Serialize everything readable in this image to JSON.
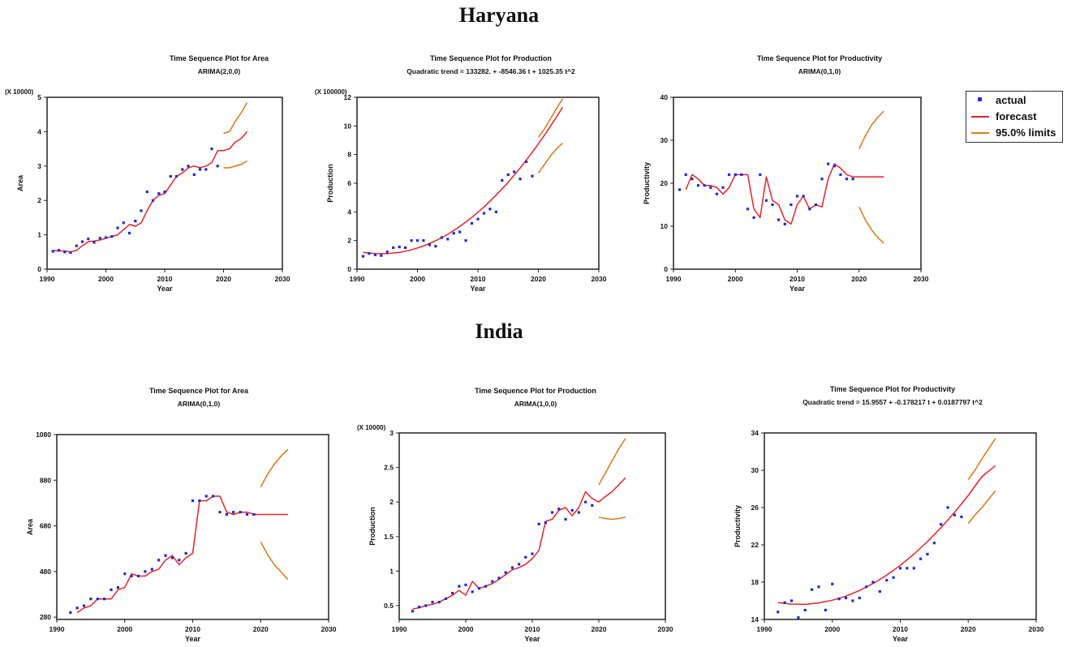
{
  "sections": {
    "haryana": "Haryana",
    "india": "India"
  },
  "legend": {
    "actual": "actual",
    "forecast": "forecast",
    "limits": "95.0% limits"
  },
  "colors": {
    "actual": "#1f2bd6",
    "forecast": "#e8222b",
    "limits": "#e07b20",
    "axis": "#222222"
  },
  "chart_data": [
    {
      "type": "line",
      "title": "Time Sequence Plot for Area",
      "subtitle": "ARIMA(2,0,0)",
      "xlabel": "Year",
      "ylabel": "Area",
      "multiplier": "(X 10000)",
      "xlim": [
        1990,
        2030
      ],
      "ylim": [
        0,
        5
      ],
      "xticks": [
        1990,
        2000,
        2010,
        2020,
        2030
      ],
      "yticks": [
        0,
        1,
        2,
        3,
        4,
        5
      ],
      "actual": {
        "x": [
          1991,
          1992,
          1993,
          1994,
          1995,
          1996,
          1997,
          1998,
          1999,
          2000,
          2001,
          2002,
          2003,
          2004,
          2005,
          2006,
          2007,
          2008,
          2009,
          2010,
          2011,
          2012,
          2013,
          2014,
          2015,
          2016,
          2017,
          2018,
          2019
        ],
        "y": [
          0.52,
          0.55,
          0.5,
          0.48,
          0.68,
          0.8,
          0.88,
          0.78,
          0.9,
          0.92,
          0.95,
          1.2,
          1.35,
          1.05,
          1.4,
          1.7,
          2.25,
          2.0,
          2.2,
          2.25,
          2.7,
          2.7,
          2.9,
          3.0,
          2.75,
          2.9,
          2.9,
          3.5,
          3.0
        ]
      },
      "fitted": {
        "x": [
          1991,
          1992,
          1993,
          1994,
          1995,
          1996,
          1997,
          1998,
          1999,
          2000,
          2001,
          2002,
          2003,
          2004,
          2005,
          2006,
          2007,
          2008,
          2009,
          2010,
          2011,
          2012,
          2013,
          2014,
          2015,
          2016,
          2017,
          2018,
          2019,
          2020,
          2021,
          2022,
          2023,
          2024
        ],
        "y": [
          0.55,
          0.53,
          0.53,
          0.5,
          0.55,
          0.68,
          0.8,
          0.82,
          0.85,
          0.9,
          0.95,
          1.0,
          1.15,
          1.3,
          1.25,
          1.35,
          1.7,
          2.0,
          2.15,
          2.2,
          2.45,
          2.7,
          2.8,
          2.95,
          3.0,
          2.95,
          3.0,
          3.1,
          3.45,
          3.45,
          3.5,
          3.7,
          3.8,
          4.0
        ]
      },
      "upper": {
        "x": [
          2020,
          2021,
          2022,
          2023,
          2024
        ],
        "y": [
          3.95,
          4.0,
          4.3,
          4.55,
          4.85
        ]
      },
      "lower": {
        "x": [
          2020,
          2021,
          2022,
          2023,
          2024
        ],
        "y": [
          2.95,
          2.95,
          3.0,
          3.05,
          3.15
        ]
      }
    },
    {
      "type": "line",
      "title": "Time Sequence Plot for Production",
      "subtitle": "Quadratic trend = 133282. + -8546.36 t  + 1025.35 t^2",
      "xlabel": "Year",
      "ylabel": "Production",
      "multiplier": "(X 100000)",
      "xlim": [
        1990,
        2030
      ],
      "ylim": [
        0,
        12
      ],
      "xticks": [
        1990,
        2000,
        2010,
        2020,
        2030
      ],
      "yticks": [
        0,
        2,
        4,
        6,
        8,
        10,
        12
      ],
      "actual": {
        "x": [
          1991,
          1992,
          1993,
          1994,
          1995,
          1996,
          1997,
          1998,
          1999,
          2000,
          2001,
          2002,
          2003,
          2004,
          2005,
          2006,
          2007,
          2008,
          2009,
          2010,
          2011,
          2012,
          2013,
          2014,
          2015,
          2016,
          2017,
          2018,
          2019
        ],
        "y": [
          0.9,
          1.1,
          1.0,
          0.95,
          1.2,
          1.5,
          1.55,
          1.5,
          2.0,
          2.0,
          2.0,
          1.7,
          1.6,
          2.2,
          2.1,
          2.5,
          2.6,
          2.0,
          3.2,
          3.5,
          3.9,
          4.2,
          4.0,
          6.2,
          6.6,
          6.8,
          6.3,
          7.5,
          6.5
        ]
      },
      "fitted": {
        "x": [
          1991,
          1993,
          1995,
          1997,
          1999,
          2001,
          2003,
          2005,
          2007,
          2009,
          2011,
          2013,
          2015,
          2017,
          2019,
          2021,
          2023,
          2024
        ],
        "y": [
          1.18,
          1.09,
          1.08,
          1.17,
          1.35,
          1.62,
          1.98,
          2.43,
          2.98,
          3.61,
          4.34,
          5.16,
          6.07,
          7.07,
          8.16,
          9.35,
          10.63,
          11.3
        ]
      },
      "upper": {
        "x": [
          2020,
          2021,
          2022,
          2023,
          2024
        ],
        "y": [
          9.2,
          9.8,
          10.5,
          11.2,
          11.9
        ]
      },
      "lower": {
        "x": [
          2020,
          2021,
          2022,
          2023,
          2024
        ],
        "y": [
          6.7,
          7.3,
          7.9,
          8.4,
          8.8
        ]
      }
    },
    {
      "type": "line",
      "title": "Time Sequence Plot for Productivity",
      "subtitle": "ARIMA(0,1,0)",
      "xlabel": "Year",
      "ylabel": "Productivity",
      "multiplier": "",
      "xlim": [
        1990,
        2030
      ],
      "ylim": [
        0,
        40
      ],
      "xticks": [
        1990,
        2000,
        2010,
        2020,
        2030
      ],
      "yticks": [
        0,
        10,
        20,
        30,
        40
      ],
      "actual": {
        "x": [
          1991,
          1992,
          1993,
          1994,
          1995,
          1996,
          1997,
          1998,
          1999,
          2000,
          2001,
          2002,
          2003,
          2004,
          2005,
          2006,
          2007,
          2008,
          2009,
          2010,
          2011,
          2012,
          2013,
          2014,
          2015,
          2016,
          2017,
          2018,
          2019
        ],
        "y": [
          18.5,
          22,
          21,
          19.5,
          19.5,
          19,
          17.5,
          19,
          22,
          22,
          22,
          14,
          12,
          22,
          16,
          15,
          11.5,
          10.5,
          15,
          17,
          17,
          14,
          15,
          21,
          24.5,
          24,
          22,
          21,
          21
        ]
      },
      "fitted": {
        "x": [
          1992,
          1993,
          1994,
          1995,
          1996,
          1997,
          1998,
          1999,
          2000,
          2001,
          2002,
          2003,
          2004,
          2005,
          2006,
          2007,
          2008,
          2009,
          2010,
          2011,
          2012,
          2013,
          2014,
          2015,
          2016,
          2017,
          2018,
          2019,
          2020,
          2024
        ],
        "y": [
          18.5,
          22,
          21,
          19.5,
          19.5,
          19,
          17.5,
          19,
          22,
          22,
          22,
          14,
          12,
          21.5,
          16,
          15,
          11.5,
          10.5,
          15,
          17,
          14,
          15,
          14.5,
          21,
          24.5,
          23.5,
          22,
          21.5,
          21.5,
          21.5
        ]
      },
      "upper": {
        "x": [
          2020,
          2021,
          2022,
          2023,
          2024
        ],
        "y": [
          28,
          31,
          33.5,
          35.3,
          36.8
        ]
      },
      "lower": {
        "x": [
          2020,
          2021,
          2022,
          2023,
          2024
        ],
        "y": [
          14.5,
          11.5,
          9.2,
          7.4,
          6.0
        ]
      }
    },
    {
      "type": "line",
      "title": "Time Sequence Plot for Area",
      "subtitle": "ARIMA(0,1,0)",
      "xlabel": "Year",
      "ylabel": "Area",
      "multiplier": "",
      "xlim": [
        1990,
        2030
      ],
      "ylim": [
        270,
        1080
      ],
      "xticks": [
        1990,
        2000,
        2010,
        2020,
        2030
      ],
      "yticks": [
        280,
        480,
        680,
        880,
        1080
      ],
      "ytick_labels": [
        "280",
        "480",
        "680",
        "880",
        "1080"
      ],
      "actual": {
        "x": [
          1992,
          1993,
          1994,
          1995,
          1996,
          1997,
          1998,
          1999,
          2000,
          2001,
          2002,
          2003,
          2004,
          2005,
          2006,
          2007,
          2008,
          2009,
          2010,
          2011,
          2012,
          2013,
          2014,
          2015,
          2016,
          2017,
          2018,
          2019
        ],
        "y": [
          300,
          320,
          330,
          360,
          360,
          360,
          400,
          410,
          470,
          460,
          460,
          480,
          490,
          530,
          550,
          540,
          530,
          560,
          790,
          790,
          810,
          810,
          740,
          730,
          740,
          740,
          730,
          730
        ]
      },
      "fitted": {
        "x": [
          1993,
          1994,
          1995,
          1996,
          1997,
          1998,
          1999,
          2000,
          2001,
          2002,
          2003,
          2004,
          2005,
          2006,
          2007,
          2008,
          2009,
          2010,
          2011,
          2012,
          2013,
          2014,
          2015,
          2016,
          2017,
          2018,
          2019,
          2020,
          2024
        ],
        "y": [
          300,
          320,
          330,
          360,
          360,
          360,
          400,
          410,
          470,
          460,
          460,
          480,
          490,
          530,
          550,
          510,
          540,
          560,
          790,
          790,
          810,
          810,
          740,
          730,
          740,
          740,
          730,
          730,
          730
        ]
      },
      "upper": {
        "x": [
          2020,
          2021,
          2022,
          2023,
          2024
        ],
        "y": [
          850,
          905,
          950,
          985,
          1015
        ]
      },
      "lower": {
        "x": [
          2020,
          2021,
          2022,
          2023,
          2024
        ],
        "y": [
          610,
          555,
          510,
          478,
          445
        ]
      }
    },
    {
      "type": "line",
      "title": "Time Sequence Plot for Production",
      "subtitle": "ARIMA(1,0,0)",
      "xlabel": "Year",
      "ylabel": "Production",
      "multiplier": "(X 10000)",
      "xlim": [
        1990,
        2030
      ],
      "ylim": [
        0.3,
        3
      ],
      "xticks": [
        1990,
        2000,
        2010,
        2020,
        2030
      ],
      "yticks": [
        0.5,
        1,
        1.5,
        2,
        2.5,
        3
      ],
      "ytick_labels": [
        "0.5",
        "1",
        "1.5",
        "2",
        "2.5",
        "3"
      ],
      "actual": {
        "x": [
          1992,
          1993,
          1994,
          1995,
          1996,
          1997,
          1998,
          1999,
          2000,
          2001,
          2002,
          2003,
          2004,
          2005,
          2006,
          2007,
          2008,
          2009,
          2010,
          2011,
          2012,
          2013,
          2014,
          2015,
          2016,
          2017,
          2018,
          2019
        ],
        "y": [
          0.42,
          0.48,
          0.5,
          0.55,
          0.55,
          0.6,
          0.68,
          0.78,
          0.8,
          0.7,
          0.75,
          0.78,
          0.85,
          0.9,
          0.98,
          1.05,
          1.1,
          1.2,
          1.25,
          1.68,
          1.7,
          1.85,
          1.9,
          1.75,
          1.88,
          1.85,
          2.0,
          1.95
        ]
      },
      "fitted": {
        "x": [
          1992,
          1993,
          1994,
          1995,
          1996,
          1997,
          1998,
          1999,
          2000,
          2001,
          2002,
          2003,
          2004,
          2005,
          2006,
          2007,
          2008,
          2009,
          2010,
          2011,
          2012,
          2013,
          2014,
          2015,
          2016,
          2017,
          2018,
          2019,
          2020,
          2021,
          2022,
          2023,
          2024
        ],
        "y": [
          0.45,
          0.47,
          0.5,
          0.52,
          0.55,
          0.6,
          0.65,
          0.72,
          0.65,
          0.85,
          0.75,
          0.78,
          0.82,
          0.88,
          0.95,
          1.02,
          1.05,
          1.1,
          1.18,
          1.3,
          1.72,
          1.75,
          1.88,
          1.92,
          1.8,
          1.92,
          2.15,
          2.05,
          2.0,
          2.08,
          2.15,
          2.25,
          2.35
        ]
      },
      "upper": {
        "x": [
          2020,
          2021,
          2022,
          2023,
          2024
        ],
        "y": [
          2.25,
          2.42,
          2.6,
          2.77,
          2.92
        ]
      },
      "lower": {
        "x": [
          2020,
          2021,
          2022,
          2023,
          2024
        ],
        "y": [
          1.78,
          1.76,
          1.75,
          1.76,
          1.78
        ]
      }
    },
    {
      "type": "line",
      "title": "Time Sequence Plot for Productivity",
      "subtitle": "Quadratic trend = 15.9557 + -0.178217 t  + 0.0187797 t^2",
      "xlabel": "Year",
      "ylabel": "Productivity",
      "multiplier": "",
      "xlim": [
        1990,
        2030
      ],
      "ylim": [
        14,
        34
      ],
      "xticks": [
        1990,
        2000,
        2010,
        2020,
        2030
      ],
      "yticks": [
        14,
        18,
        22,
        26,
        30,
        34
      ],
      "actual": {
        "x": [
          1992,
          1993,
          1994,
          1995,
          1996,
          1997,
          1998,
          1999,
          2000,
          2001,
          2002,
          2003,
          2004,
          2005,
          2006,
          2007,
          2008,
          2009,
          2010,
          2011,
          2012,
          2013,
          2014,
          2015,
          2016,
          2017,
          2018,
          2019
        ],
        "y": [
          14.8,
          15.8,
          16,
          14.2,
          15,
          17.2,
          17.5,
          15,
          17.8,
          16.2,
          16.3,
          16,
          16.3,
          17.5,
          18,
          17,
          18.2,
          18.5,
          19.5,
          19.5,
          19.5,
          20.5,
          21,
          22.2,
          24.2,
          26,
          25.2,
          25
        ]
      },
      "fitted": {
        "x": [
          1992,
          1994,
          1996,
          1998,
          2000,
          2002,
          2004,
          2006,
          2008,
          2010,
          2012,
          2014,
          2016,
          2018,
          2020,
          2022,
          2024
        ],
        "y": [
          15.8,
          15.64,
          15.62,
          15.77,
          16.06,
          16.5,
          17.1,
          17.85,
          18.75,
          19.8,
          21.0,
          22.35,
          23.85,
          25.5,
          27.3,
          29.3,
          30.5
        ]
      },
      "upper": {
        "x": [
          2020,
          2021,
          2022,
          2023,
          2024
        ],
        "y": [
          29.0,
          30.0,
          31.2,
          32.3,
          33.4
        ]
      },
      "lower": {
        "x": [
          2020,
          2021,
          2022,
          2023,
          2024
        ],
        "y": [
          24.3,
          25.2,
          26.0,
          26.9,
          27.8
        ]
      }
    }
  ]
}
